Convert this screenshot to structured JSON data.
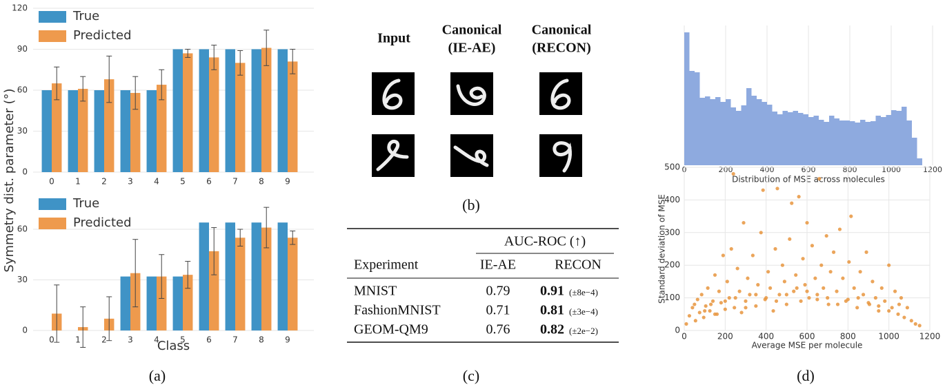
{
  "chart_data": [
    {
      "type": "bar",
      "y_label": "Symmetry dist. parameter (°)",
      "categories": [
        "0",
        "1",
        "2",
        "3",
        "4",
        "5",
        "6",
        "7",
        "8",
        "9"
      ],
      "series": [
        {
          "name": "True",
          "color": "#3f93c6",
          "values": [
            60,
            60,
            60,
            60,
            60,
            90,
            90,
            90,
            90,
            90
          ]
        },
        {
          "name": "Predicted",
          "color": "#ee9a4d",
          "values": [
            65,
            61,
            68,
            58,
            64,
            87,
            84,
            80,
            91,
            81
          ],
          "errors": [
            12,
            9,
            17,
            12,
            11,
            3,
            9,
            9,
            13,
            9
          ]
        }
      ],
      "ylim": [
        0,
        120
      ],
      "yticks": [
        0,
        30,
        60,
        90,
        120
      ],
      "grid": true,
      "legend": "upper-left"
    },
    {
      "type": "bar",
      "x_label": "Class",
      "categories": [
        "0",
        "1",
        "2",
        "3",
        "4",
        "5",
        "6",
        "7",
        "8",
        "9"
      ],
      "series": [
        {
          "name": "True",
          "color": "#3f93c6",
          "values": [
            0,
            0,
            0,
            32,
            32,
            32,
            64,
            64,
            64,
            64
          ]
        },
        {
          "name": "Predicted",
          "color": "#ee9a4d",
          "values": [
            10,
            2,
            7,
            34,
            32,
            33,
            47,
            55,
            61,
            55
          ],
          "errors": [
            17,
            12,
            13,
            20,
            13,
            8,
            14,
            5,
            12,
            4
          ]
        }
      ],
      "ylim": [
        0,
        80
      ],
      "yticks": [
        0,
        30,
        60
      ],
      "grid": true,
      "legend": "upper-left"
    },
    {
      "type": "histogram",
      "x_label": "Distribution of MSE across molecules",
      "color": "#8eaadf",
      "bins": [
        0,
        25,
        50,
        75,
        100,
        125,
        150,
        175,
        200,
        225,
        250,
        275,
        300,
        325,
        350,
        375,
        400,
        425,
        450,
        475,
        500,
        525,
        550,
        575,
        600,
        625,
        650,
        675,
        700,
        725,
        750,
        775,
        800,
        825,
        850,
        875,
        900,
        925,
        950,
        975,
        1000,
        1025,
        1050,
        1075,
        1100,
        1125,
        1150
      ],
      "counts": [
        193,
        137,
        135,
        98,
        100,
        96,
        99,
        92,
        96,
        84,
        79,
        87,
        112,
        101,
        96,
        92,
        88,
        78,
        74,
        79,
        77,
        79,
        76,
        74,
        70,
        72,
        66,
        63,
        72,
        68,
        65,
        65,
        64,
        62,
        66,
        63,
        64,
        72,
        70,
        73,
        80,
        79,
        85,
        65,
        40,
        10
      ],
      "xlim": [
        0,
        1200
      ],
      "xticks": [
        0,
        200,
        400,
        600,
        800,
        1000,
        1200
      ],
      "grid": true
    },
    {
      "type": "scatter",
      "x_label": "Average MSE per molecule",
      "y_label": "Standard deviation of MSE",
      "color": "#e8953e",
      "x": [
        10,
        25,
        40,
        55,
        65,
        75,
        85,
        95,
        105,
        115,
        125,
        140,
        150,
        160,
        170,
        180,
        190,
        200,
        210,
        220,
        230,
        240,
        245,
        260,
        270,
        280,
        290,
        300,
        310,
        320,
        335,
        350,
        360,
        375,
        385,
        395,
        410,
        420,
        435,
        445,
        455,
        465,
        480,
        490,
        500,
        515,
        525,
        535,
        545,
        560,
        570,
        580,
        590,
        600,
        610,
        625,
        640,
        650,
        660,
        670,
        680,
        695,
        705,
        715,
        730,
        745,
        760,
        775,
        790,
        805,
        815,
        830,
        845,
        860,
        875,
        890,
        905,
        920,
        935,
        950,
        965,
        980,
        1000,
        1015,
        1030,
        1045,
        1060,
        1075,
        1090,
        1110,
        1130,
        1150,
        100,
        130,
        200,
        300,
        400,
        500,
        600,
        700,
        800,
        900,
        1000,
        50,
        150,
        250,
        350,
        450,
        550,
        650,
        750,
        850,
        950,
        1050
      ],
      "values": [
        20,
        45,
        70,
        30,
        95,
        55,
        110,
        40,
        75,
        130,
        60,
        90,
        170,
        50,
        120,
        85,
        230,
        65,
        150,
        100,
        250,
        480,
        70,
        190,
        120,
        55,
        330,
        90,
        160,
        110,
        230,
        75,
        140,
        300,
        430,
        95,
        180,
        130,
        60,
        250,
        435,
        110,
        200,
        150,
        80,
        280,
        390,
        120,
        170,
        410,
        90,
        220,
        140,
        330,
        100,
        260,
        160,
        110,
        465,
        200,
        130,
        290,
        80,
        180,
        240,
        120,
        310,
        160,
        90,
        210,
        350,
        130,
        70,
        180,
        110,
        240,
        80,
        150,
        100,
        60,
        130,
        90,
        200,
        70,
        120,
        50,
        100,
        40,
        70,
        30,
        20,
        15,
        60,
        80,
        90,
        70,
        100,
        110,
        120,
        100,
        95,
        85,
        60,
        80,
        50,
        100,
        110,
        90,
        130,
        95,
        80,
        100,
        75,
        80
      ],
      "xlim": [
        0,
        1200
      ],
      "ylim": [
        0,
        500
      ],
      "xticks": [
        0,
        200,
        400,
        600,
        800,
        1000,
        1200
      ],
      "yticks": [
        0,
        100,
        200,
        300,
        400,
        500
      ],
      "grid": true
    }
  ],
  "panel_labels": [
    "(a)",
    "(b)",
    "(c)",
    "(d)"
  ],
  "panel_b": {
    "columns": [
      [
        "Input"
      ],
      [
        "Canonical",
        "(IE-AE)"
      ],
      [
        "Canonical",
        "(RECON)"
      ]
    ]
  },
  "table": {
    "group_header": "AUC-ROC (↑)",
    "columns": [
      "Experiment",
      "IE-AE",
      "RECON"
    ],
    "rows": [
      [
        "MNIST",
        "0.79",
        "0.91",
        "(±8e−4)"
      ],
      [
        "FashionMNIST",
        "0.71",
        "0.81",
        "(±3e−4)"
      ],
      [
        "GEOM-QM9",
        "0.76",
        "0.82",
        "(±2e−2)"
      ]
    ]
  }
}
